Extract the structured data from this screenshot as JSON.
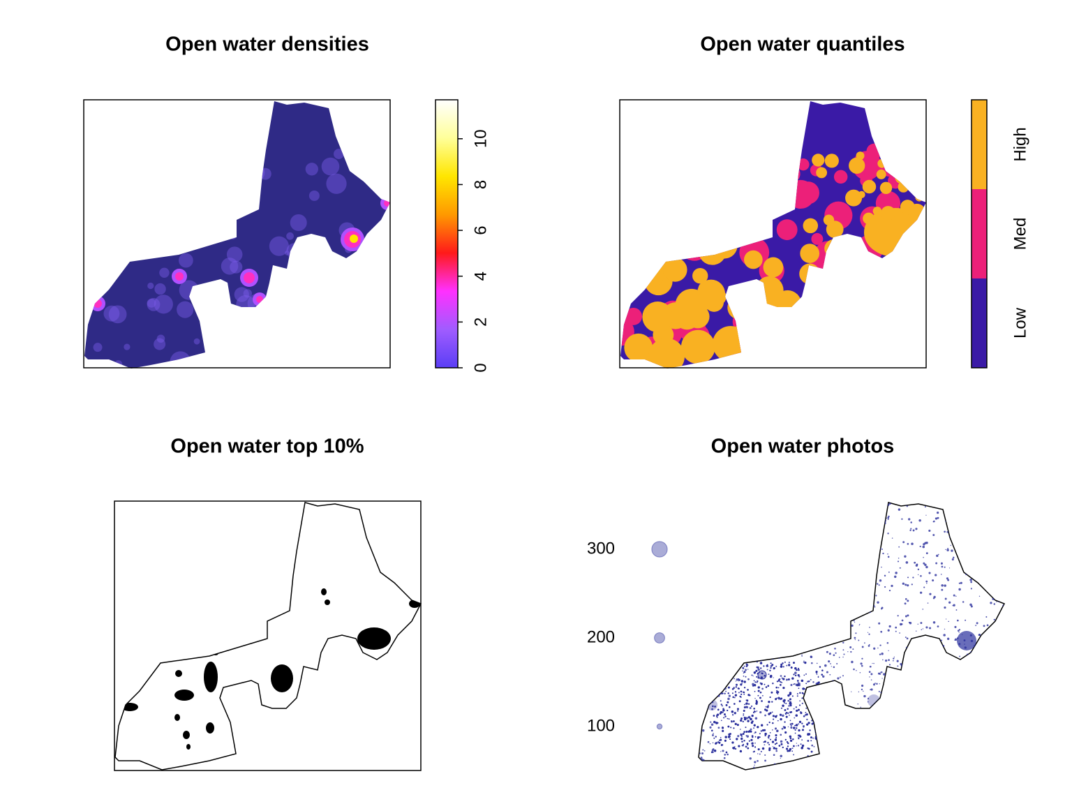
{
  "panels": [
    {
      "title": "Open water densities",
      "colorbar": {
        "lim": [
          0,
          11.7
        ],
        "ticks": [
          0,
          2,
          4,
          6,
          8,
          10
        ],
        "colors": [
          "#5a3ef5",
          "#a05cff",
          "#ff30ff",
          "#ff1a1a",
          "#ff9900",
          "#ffe600",
          "#ffff99",
          "#ffffff"
        ]
      }
    },
    {
      "title": "Open water quantiles",
      "legend": {
        "labels": [
          "Low",
          "Med",
          "High"
        ],
        "colors": [
          "#3a1aa6",
          "#ec2079",
          "#f9b122"
        ]
      }
    },
    {
      "title": "Open water top 10%"
    },
    {
      "title": "Open water photos",
      "size_legend": {
        "values": [
          100,
          200,
          300
        ],
        "color": "#2a2f9c"
      }
    }
  ]
}
